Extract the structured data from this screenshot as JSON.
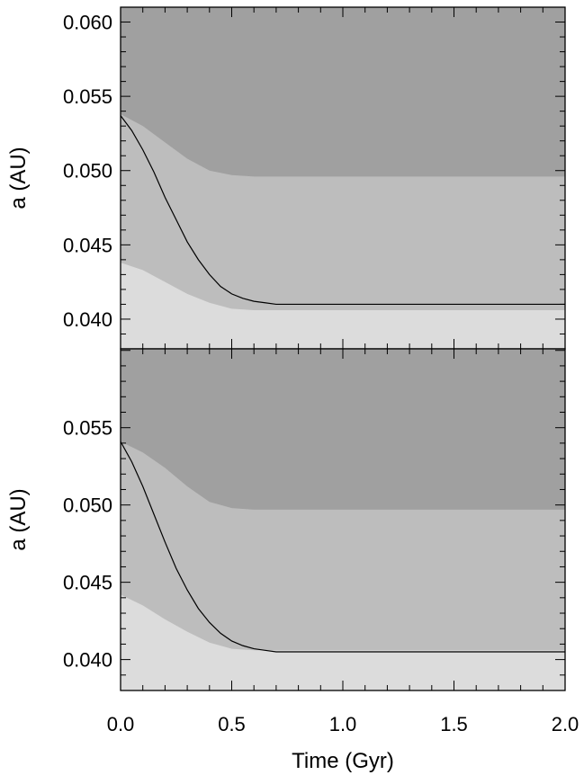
{
  "chart_data": [
    {
      "type": "area",
      "panel": "top",
      "xlabel": "",
      "ylabel": "a (AU)",
      "xlim": [
        0.0,
        2.0
      ],
      "ylim": [
        0.038,
        0.061
      ],
      "yticks": [
        0.04,
        0.045,
        0.05,
        0.055,
        0.06
      ],
      "ytick_labels": [
        "0.040",
        "0.045",
        "0.050",
        "0.055",
        "0.060"
      ],
      "xticks": [
        0.0,
        0.5,
        1.0,
        1.5,
        2.0
      ],
      "xtick_labels": [],
      "colors": {
        "dark": "#a0a0a0",
        "mid": "#bdbdbd",
        "light": "#dcdcdc",
        "line": "#000000"
      },
      "series": [
        {
          "role": "upper-boundary",
          "x": [
            0.0,
            0.1,
            0.2,
            0.3,
            0.4,
            0.5,
            0.6,
            0.7,
            0.8,
            0.9,
            1.0,
            1.5,
            2.0
          ],
          "values": [
            0.0538,
            0.053,
            0.0519,
            0.0508,
            0.05,
            0.0497,
            0.0496,
            0.0496,
            0.0496,
            0.0496,
            0.0496,
            0.0496,
            0.0496
          ]
        },
        {
          "role": "lower-boundary",
          "x": [
            0.0,
            0.1,
            0.2,
            0.3,
            0.4,
            0.5,
            0.6,
            0.7,
            0.8,
            0.9,
            1.0,
            1.5,
            2.0
          ],
          "values": [
            0.0438,
            0.0433,
            0.0425,
            0.0417,
            0.0411,
            0.0407,
            0.0406,
            0.0406,
            0.0406,
            0.0406,
            0.0406,
            0.0406,
            0.0406
          ]
        },
        {
          "role": "orbit-track",
          "x": [
            0.0,
            0.05,
            0.1,
            0.15,
            0.2,
            0.25,
            0.3,
            0.35,
            0.4,
            0.45,
            0.5,
            0.55,
            0.6,
            0.65,
            0.7,
            0.8,
            0.9,
            1.0,
            1.5,
            2.0
          ],
          "values": [
            0.0537,
            0.0527,
            0.0514,
            0.0499,
            0.0482,
            0.0467,
            0.0452,
            0.044,
            0.043,
            0.0422,
            0.0417,
            0.0414,
            0.0412,
            0.0411,
            0.041,
            0.041,
            0.041,
            0.041,
            0.041,
            0.041
          ]
        }
      ]
    },
    {
      "type": "area",
      "panel": "bottom",
      "xlabel": "Time (Gyr)",
      "ylabel": "a (AU)",
      "xlim": [
        0.0,
        2.0
      ],
      "ylim": [
        0.038,
        0.0601
      ],
      "yticks": [
        0.04,
        0.045,
        0.05,
        0.055
      ],
      "ytick_labels": [
        "0.040",
        "0.045",
        "0.050",
        "0.055"
      ],
      "xticks": [
        0.0,
        0.5,
        1.0,
        1.5,
        2.0
      ],
      "xtick_labels": [
        "0.0",
        "0.5",
        "1.0",
        "1.5",
        "2.0"
      ],
      "colors": {
        "dark": "#a0a0a0",
        "mid": "#bdbdbd",
        "light": "#dcdcdc",
        "line": "#000000"
      },
      "series": [
        {
          "role": "upper-boundary",
          "x": [
            0.0,
            0.1,
            0.2,
            0.3,
            0.4,
            0.5,
            0.6,
            0.7,
            0.8,
            0.9,
            1.0,
            1.5,
            2.0
          ],
          "values": [
            0.0541,
            0.0534,
            0.0524,
            0.0512,
            0.0502,
            0.0498,
            0.0497,
            0.0497,
            0.0497,
            0.0497,
            0.0497,
            0.0497,
            0.0497
          ]
        },
        {
          "role": "lower-boundary",
          "x": [
            0.0,
            0.1,
            0.2,
            0.3,
            0.4,
            0.5,
            0.6,
            0.7,
            0.8,
            0.9,
            1.0,
            1.5,
            2.0
          ],
          "values": [
            0.0442,
            0.0435,
            0.0426,
            0.0418,
            0.0411,
            0.0407,
            0.0406,
            0.0406,
            0.0406,
            0.0406,
            0.0406,
            0.0406,
            0.0406
          ]
        },
        {
          "role": "orbit-track",
          "x": [
            0.0,
            0.05,
            0.1,
            0.15,
            0.2,
            0.25,
            0.3,
            0.35,
            0.4,
            0.45,
            0.5,
            0.55,
            0.6,
            0.65,
            0.7,
            0.8,
            0.9,
            1.0,
            1.5,
            2.0
          ],
          "values": [
            0.0541,
            0.0528,
            0.0512,
            0.0494,
            0.0476,
            0.0459,
            0.0445,
            0.0433,
            0.0424,
            0.0417,
            0.0412,
            0.0409,
            0.0407,
            0.0406,
            0.0405,
            0.0405,
            0.0405,
            0.0405,
            0.0405,
            0.0405
          ]
        }
      ]
    }
  ]
}
